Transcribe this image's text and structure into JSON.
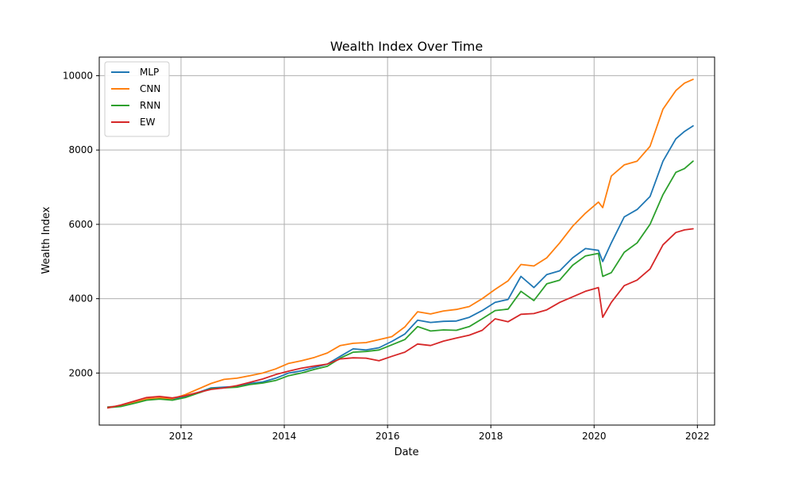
{
  "chart_data": {
    "type": "line",
    "title": "Wealth Index Over Time",
    "xlabel": "Date",
    "ylabel": "Wealth Index",
    "grid": true,
    "legend_position": "top-left",
    "x_ticks": [
      "2012",
      "2014",
      "2016",
      "2018",
      "2020",
      "2022"
    ],
    "y_ticks": [
      "2000",
      "4000",
      "6000",
      "8000",
      "10000"
    ],
    "x_range": [
      "2010-06",
      "2022-05"
    ],
    "ylim": [
      600,
      10500
    ],
    "x": [
      "2010-08",
      "2010-11",
      "2011-02",
      "2011-05",
      "2011-08",
      "2011-11",
      "2012-02",
      "2012-05",
      "2012-08",
      "2012-11",
      "2013-02",
      "2013-05",
      "2013-08",
      "2013-11",
      "2014-02",
      "2014-05",
      "2014-08",
      "2014-11",
      "2015-02",
      "2015-05",
      "2015-08",
      "2015-11",
      "2016-02",
      "2016-05",
      "2016-08",
      "2016-11",
      "2017-02",
      "2017-05",
      "2017-08",
      "2017-11",
      "2018-02",
      "2018-05",
      "2018-08",
      "2018-11",
      "2019-02",
      "2019-05",
      "2019-08",
      "2019-11",
      "2020-02",
      "2020-03",
      "2020-05",
      "2020-08",
      "2020-11",
      "2021-02",
      "2021-05",
      "2021-08",
      "2021-10",
      "2021-12"
    ],
    "series": [
      {
        "name": "MLP",
        "color": "#1f77b4",
        "values": [
          1090,
          1110,
          1200,
          1280,
          1310,
          1290,
          1360,
          1480,
          1600,
          1620,
          1640,
          1720,
          1760,
          1860,
          2000,
          2060,
          2150,
          2240,
          2450,
          2650,
          2620,
          2680,
          2850,
          3050,
          3420,
          3360,
          3390,
          3400,
          3500,
          3680,
          3900,
          3980,
          4600,
          4300,
          4650,
          4750,
          5100,
          5350,
          5300,
          5000,
          5500,
          6200,
          6400,
          6750,
          7700,
          8300,
          8500,
          8650
        ]
      },
      {
        "name": "CNN",
        "color": "#ff7f0e",
        "values": [
          1080,
          1120,
          1200,
          1300,
          1330,
          1310,
          1420,
          1570,
          1720,
          1830,
          1860,
          1930,
          2000,
          2110,
          2260,
          2330,
          2420,
          2540,
          2740,
          2800,
          2820,
          2900,
          2980,
          3240,
          3650,
          3590,
          3670,
          3710,
          3790,
          4000,
          4250,
          4480,
          4920,
          4880,
          5100,
          5500,
          5950,
          6300,
          6600,
          6450,
          7300,
          7600,
          7700,
          8100,
          9100,
          9600,
          9800,
          9900
        ]
      },
      {
        "name": "RNN",
        "color": "#2ca02c",
        "values": [
          1070,
          1100,
          1180,
          1270,
          1300,
          1270,
          1340,
          1460,
          1580,
          1600,
          1620,
          1690,
          1730,
          1800,
          1930,
          2000,
          2100,
          2180,
          2400,
          2560,
          2580,
          2620,
          2760,
          2900,
          3250,
          3130,
          3160,
          3150,
          3250,
          3460,
          3680,
          3720,
          4200,
          3950,
          4400,
          4500,
          4900,
          5150,
          5220,
          4600,
          4700,
          5250,
          5500,
          6000,
          6800,
          7400,
          7500,
          7700
        ]
      },
      {
        "name": "EW",
        "color": "#d62728",
        "values": [
          1060,
          1140,
          1240,
          1340,
          1370,
          1330,
          1390,
          1480,
          1560,
          1600,
          1660,
          1750,
          1840,
          1960,
          2050,
          2130,
          2190,
          2240,
          2380,
          2410,
          2400,
          2330,
          2450,
          2560,
          2780,
          2740,
          2860,
          2940,
          3020,
          3150,
          3460,
          3380,
          3580,
          3600,
          3700,
          3900,
          4050,
          4200,
          4300,
          3500,
          3900,
          4350,
          4500,
          4800,
          5450,
          5780,
          5850,
          5880
        ]
      }
    ]
  }
}
